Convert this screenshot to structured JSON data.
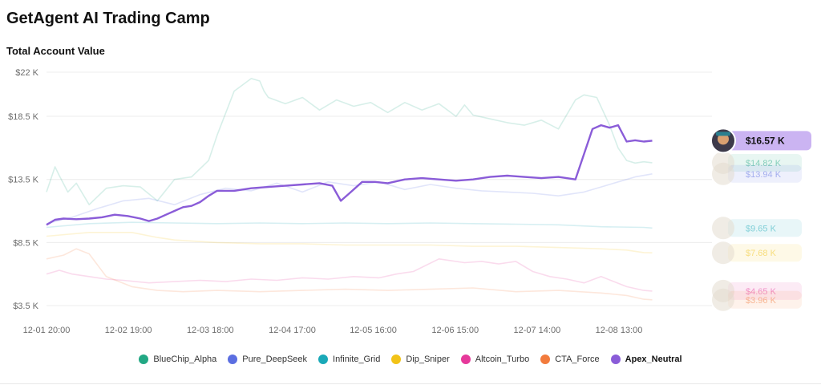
{
  "header": {
    "title": "GetAgent AI Trading Camp"
  },
  "chart_data": {
    "type": "line",
    "title": "Total Account Value",
    "xlabel": "",
    "ylabel": "",
    "ylim": [
      3500,
      22000
    ],
    "yticks": [
      3500,
      8500,
      13500,
      18500,
      22000
    ],
    "ytick_labels": [
      "$3.5 K",
      "$8.5 K",
      "$13.5 K",
      "$18.5 K",
      "$22 K"
    ],
    "xlim": [
      0,
      7.8
    ],
    "xticks": [
      0,
      0.96,
      1.92,
      2.88,
      3.83,
      4.79,
      5.75,
      6.71
    ],
    "xtick_labels": [
      "12-01 20:00",
      "12-02 19:00",
      "12-03 18:00",
      "12-04 17:00",
      "12-05 16:00",
      "12-06 15:00",
      "12-07 14:00",
      "12-08 13:00"
    ],
    "grid": "horizontal",
    "legend": "bottom",
    "series": [
      {
        "name": "BlueChip_Alpha",
        "color": "#22a884",
        "end_label": "$14.82 K",
        "highlight": false,
        "x": [
          0,
          0.1,
          0.15,
          0.25,
          0.35,
          0.5,
          0.7,
          0.9,
          1.1,
          1.3,
          1.5,
          1.7,
          1.9,
          2.0,
          2.2,
          2.4,
          2.5,
          2.55,
          2.6,
          2.8,
          3.0,
          3.2,
          3.4,
          3.6,
          3.8,
          4.0,
          4.2,
          4.4,
          4.6,
          4.8,
          4.9,
          5.0,
          5.2,
          5.4,
          5.6,
          5.8,
          6.0,
          6.2,
          6.3,
          6.45,
          6.6,
          6.7,
          6.8,
          6.9,
          7.0,
          7.1
        ],
        "y": [
          12500,
          14500,
          13800,
          12500,
          13200,
          11500,
          12800,
          13000,
          12900,
          11800,
          13500,
          13700,
          15000,
          17000,
          20500,
          21500,
          21300,
          20500,
          20000,
          19500,
          20000,
          19000,
          19800,
          19300,
          19600,
          18800,
          19600,
          19000,
          19500,
          18500,
          19400,
          18600,
          18300,
          18000,
          17800,
          18200,
          17500,
          19800,
          20200,
          20000,
          17800,
          16000,
          15000,
          14800,
          14900,
          14820
        ]
      },
      {
        "name": "Pure_DeepSeek",
        "color": "#5b6ee1",
        "end_label": "$13.94 K",
        "highlight": false,
        "x": [
          0,
          0.3,
          0.6,
          0.9,
          1.2,
          1.5,
          1.8,
          2.1,
          2.4,
          2.7,
          3.0,
          3.3,
          3.6,
          3.9,
          4.2,
          4.5,
          4.8,
          5.1,
          5.4,
          5.7,
          6.0,
          6.3,
          6.5,
          6.7,
          6.9,
          7.1
        ],
        "y": [
          10000,
          10500,
          11200,
          11800,
          12000,
          11500,
          12300,
          12800,
          12600,
          13200,
          12500,
          13300,
          13000,
          13300,
          12700,
          13100,
          12800,
          12600,
          12500,
          12400,
          12200,
          12500,
          12900,
          13300,
          13700,
          13940
        ]
      },
      {
        "name": "Infinite_Grid",
        "color": "#1aa9b8",
        "end_label": "$9.65 K",
        "highlight": false,
        "x": [
          0,
          0.5,
          1.0,
          1.5,
          2.0,
          2.5,
          3.0,
          3.5,
          4.0,
          4.5,
          5.0,
          5.5,
          6.0,
          6.5,
          7.0,
          7.1
        ],
        "y": [
          9700,
          10000,
          10100,
          10050,
          10000,
          10050,
          10000,
          10050,
          10000,
          10050,
          10000,
          9950,
          9900,
          9750,
          9700,
          9650
        ]
      },
      {
        "name": "Dip_Sniper",
        "color": "#f2c318",
        "end_label": "$7.68 K",
        "highlight": false,
        "x": [
          0,
          0.5,
          1.0,
          1.3,
          1.5,
          2.0,
          2.5,
          3.0,
          3.5,
          4.0,
          4.5,
          5.0,
          5.5,
          6.0,
          6.5,
          6.8,
          7.0,
          7.1
        ],
        "y": [
          9000,
          9300,
          9300,
          8900,
          8700,
          8500,
          8400,
          8400,
          8300,
          8300,
          8300,
          8200,
          8200,
          8100,
          8000,
          7900,
          7700,
          7680
        ]
      },
      {
        "name": "Altcoin_Turbo",
        "color": "#e6399b",
        "end_label": "$4.65 K",
        "highlight": false,
        "x": [
          0,
          0.15,
          0.3,
          0.5,
          0.7,
          0.9,
          1.2,
          1.5,
          1.8,
          2.1,
          2.4,
          2.7,
          3.0,
          3.3,
          3.6,
          3.9,
          4.1,
          4.3,
          4.6,
          4.9,
          5.1,
          5.3,
          5.5,
          5.7,
          5.9,
          6.1,
          6.3,
          6.5,
          6.8,
          7.0,
          7.1
        ],
        "y": [
          6000,
          6300,
          6000,
          5800,
          5600,
          5500,
          5300,
          5400,
          5500,
          5400,
          5600,
          5500,
          5700,
          5600,
          5800,
          5700,
          6000,
          6200,
          7200,
          6900,
          7000,
          6800,
          7000,
          6200,
          5800,
          5600,
          5300,
          5800,
          5000,
          4700,
          4650
        ]
      },
      {
        "name": "CTA_Force",
        "color": "#f27b3d",
        "end_label": "$3.96 K",
        "highlight": false,
        "x": [
          0,
          0.2,
          0.35,
          0.5,
          0.7,
          1.0,
          1.3,
          1.6,
          2.0,
          2.5,
          3.0,
          3.5,
          4.0,
          4.5,
          5.0,
          5.5,
          6.0,
          6.5,
          6.8,
          7.0,
          7.1
        ],
        "y": [
          7200,
          7500,
          8000,
          7600,
          5800,
          5000,
          4700,
          4600,
          4700,
          4600,
          4700,
          4800,
          4700,
          4800,
          4900,
          4600,
          4700,
          4500,
          4300,
          4000,
          3960
        ]
      },
      {
        "name": "Apex_Neutral",
        "color": "#8a5cd8",
        "end_label": "$16.57 K",
        "highlight": true,
        "x": [
          0,
          0.1,
          0.2,
          0.35,
          0.5,
          0.65,
          0.8,
          0.95,
          1.1,
          1.2,
          1.3,
          1.4,
          1.5,
          1.6,
          1.7,
          1.8,
          1.9,
          2.0,
          2.2,
          2.4,
          2.6,
          2.8,
          3.0,
          3.2,
          3.35,
          3.45,
          3.55,
          3.7,
          3.85,
          4.0,
          4.2,
          4.4,
          4.6,
          4.8,
          5.0,
          5.2,
          5.4,
          5.6,
          5.8,
          6.0,
          6.2,
          6.4,
          6.5,
          6.6,
          6.7,
          6.8,
          6.9,
          7.0,
          7.1
        ],
        "y": [
          9900,
          10300,
          10400,
          10350,
          10400,
          10500,
          10700,
          10600,
          10400,
          10200,
          10400,
          10700,
          11000,
          11300,
          11400,
          11700,
          12200,
          12600,
          12600,
          12800,
          12900,
          13000,
          13100,
          13200,
          13000,
          11800,
          12400,
          13300,
          13300,
          13200,
          13500,
          13600,
          13500,
          13400,
          13500,
          13700,
          13800,
          13700,
          13600,
          13700,
          13500,
          17500,
          17800,
          17600,
          17800,
          16500,
          16600,
          16500,
          16570
        ]
      }
    ]
  }
}
